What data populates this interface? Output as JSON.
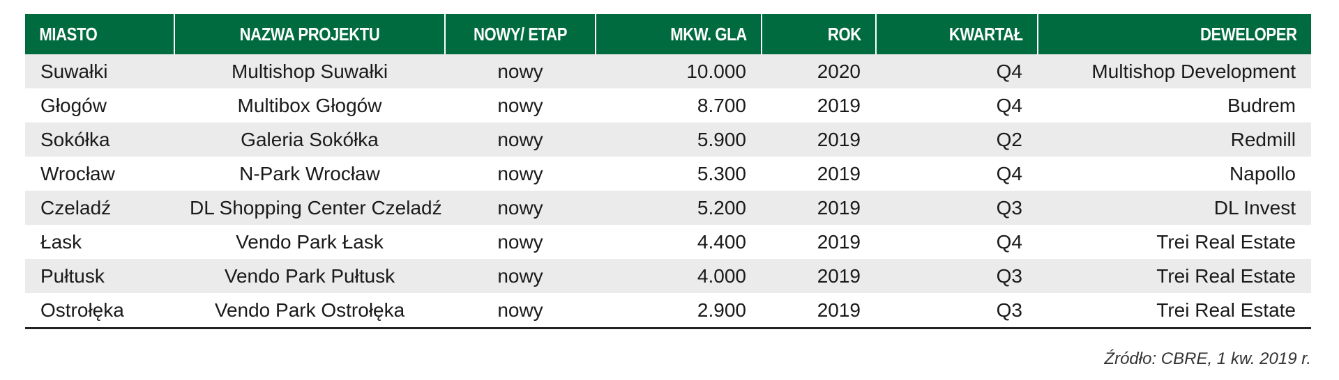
{
  "table": {
    "headers": [
      "MIASTO",
      "NAZWA PROJEKTU",
      "NOWY/ ETAP",
      "MKW. GLA",
      "ROK",
      "KWARTAŁ",
      "DEWELOPER"
    ],
    "rows": [
      [
        "Suwałki",
        "Multishop Suwałki",
        "nowy",
        "10.000",
        "2020",
        "Q4",
        "Multishop Development"
      ],
      [
        "Głogów",
        "Multibox Głogów",
        "nowy",
        "8.700",
        "2019",
        "Q4",
        "Budrem"
      ],
      [
        "Sokółka",
        "Galeria Sokółka",
        "nowy",
        "5.900",
        "2019",
        "Q2",
        "Redmill"
      ],
      [
        "Wrocław",
        "N-Park Wrocław",
        "nowy",
        "5.300",
        "2019",
        "Q4",
        "Napollo"
      ],
      [
        "Czeladź",
        "DL Shopping Center Czeladź",
        "nowy",
        "5.200",
        "2019",
        "Q3",
        "DL Invest"
      ],
      [
        "Łask",
        "Vendo Park Łask",
        "nowy",
        "4.400",
        "2019",
        "Q4",
        "Trei Real Estate"
      ],
      [
        "Pułtusk",
        "Vendo Park Pułtusk",
        "nowy",
        "4.000",
        "2019",
        "Q3",
        "Trei Real Estate"
      ],
      [
        "Ostrołęka",
        "Vendo Park Ostrołęka",
        "nowy",
        "2.900",
        "2019",
        "Q3",
        "Trei Real Estate"
      ]
    ]
  },
  "source": "Źródło: CBRE, 1 kw. 2019 r.",
  "colors": {
    "header_bg": "#006b3f",
    "header_text": "#ffffff",
    "stripe": "#ebebeb"
  }
}
